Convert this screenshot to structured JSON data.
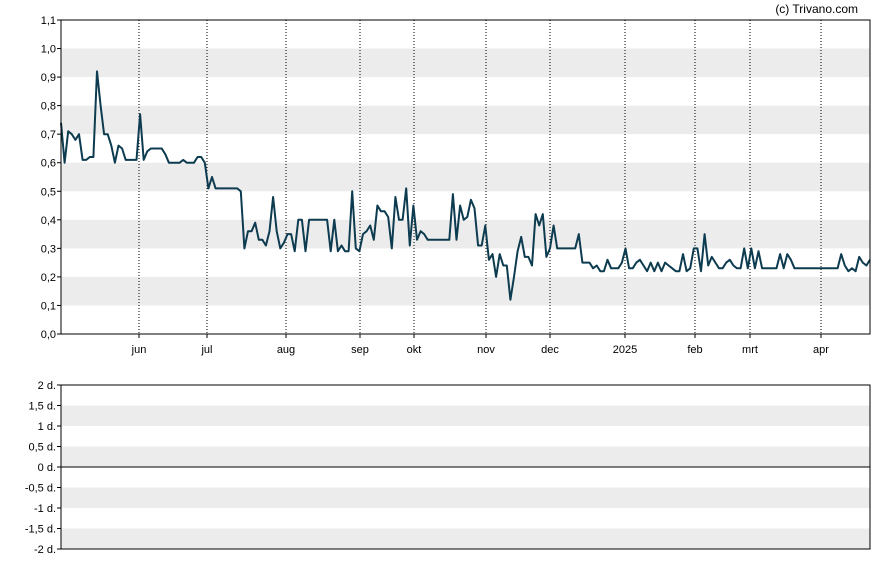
{
  "credit": "(c) Trivano.com",
  "chart_data": [
    {
      "type": "line",
      "title": "",
      "xlabel": "",
      "ylabel": "",
      "grid": true,
      "ylim": [
        0,
        1.1
      ],
      "y_ticks": [
        "0,0",
        "0,1",
        "0,2",
        "0,3",
        "0,4",
        "0,5",
        "0,6",
        "0,7",
        "0,8",
        "0,9",
        "1,0",
        "1,1"
      ],
      "x_ticks": [
        "jun",
        "jul",
        "aug",
        "sep",
        "okt",
        "nov",
        "dec",
        "2025",
        "feb",
        "mrt",
        "apr"
      ],
      "series": [
        {
          "color": "#0d3b4f",
          "values": [
            0.74,
            0.6,
            0.71,
            0.7,
            0.68,
            0.7,
            0.61,
            0.61,
            0.62,
            0.62,
            0.92,
            0.8,
            0.7,
            0.7,
            0.66,
            0.6,
            0.66,
            0.65,
            0.61,
            0.61,
            0.61,
            0.61,
            0.77,
            0.61,
            0.64,
            0.65,
            0.65,
            0.65,
            0.65,
            0.63,
            0.6,
            0.6,
            0.6,
            0.6,
            0.61,
            0.6,
            0.6,
            0.6,
            0.62,
            0.62,
            0.6,
            0.51,
            0.55,
            0.51,
            0.51,
            0.51,
            0.51,
            0.51,
            0.51,
            0.51,
            0.5,
            0.3,
            0.36,
            0.36,
            0.39,
            0.33,
            0.33,
            0.31,
            0.36,
            0.48,
            0.36,
            0.3,
            0.32,
            0.35,
            0.35,
            0.29,
            0.4,
            0.4,
            0.29,
            0.4,
            0.4,
            0.4,
            0.4,
            0.4,
            0.4,
            0.29,
            0.4,
            0.29,
            0.31,
            0.29,
            0.29,
            0.5,
            0.3,
            0.29,
            0.35,
            0.36,
            0.38,
            0.33,
            0.45,
            0.43,
            0.43,
            0.41,
            0.3,
            0.48,
            0.4,
            0.4,
            0.51,
            0.31,
            0.45,
            0.33,
            0.36,
            0.35,
            0.33,
            0.33,
            0.33,
            0.33,
            0.33,
            0.33,
            0.33,
            0.49,
            0.33,
            0.45,
            0.4,
            0.41,
            0.47,
            0.44,
            0.31,
            0.31,
            0.38,
            0.26,
            0.28,
            0.2,
            0.28,
            0.24,
            0.24,
            0.12,
            0.2,
            0.29,
            0.34,
            0.27,
            0.27,
            0.24,
            0.42,
            0.38,
            0.42,
            0.27,
            0.3,
            0.38,
            0.3,
            0.3,
            0.3,
            0.3,
            0.3,
            0.3,
            0.35,
            0.25,
            0.25,
            0.25,
            0.23,
            0.24,
            0.22,
            0.22,
            0.26,
            0.23,
            0.23,
            0.23,
            0.25,
            0.3,
            0.23,
            0.23,
            0.25,
            0.26,
            0.24,
            0.22,
            0.25,
            0.22,
            0.25,
            0.22,
            0.25,
            0.24,
            0.23,
            0.22,
            0.22,
            0.28,
            0.22,
            0.23,
            0.3,
            0.3,
            0.22,
            0.35,
            0.24,
            0.27,
            0.25,
            0.23,
            0.23,
            0.25,
            0.26,
            0.24,
            0.23,
            0.23,
            0.3,
            0.23,
            0.3,
            0.23,
            0.29,
            0.23,
            0.23,
            0.23,
            0.23,
            0.23,
            0.28,
            0.23,
            0.28,
            0.26,
            0.23,
            0.23,
            0.23,
            0.23,
            0.23,
            0.23,
            0.23,
            0.23,
            0.23,
            0.23,
            0.23,
            0.23,
            0.23,
            0.28,
            0.24,
            0.22,
            0.23,
            0.22,
            0.27,
            0.25,
            0.24,
            0.26
          ]
        }
      ]
    },
    {
      "type": "line",
      "title": "",
      "xlabel": "",
      "ylabel": "",
      "grid": true,
      "ylim": [
        -2,
        2
      ],
      "y_ticks": [
        "2 d.",
        "1,5 d.",
        "1 d.",
        "0,5 d.",
        "0 d.",
        "-0,5 d.",
        "-1 d.",
        "-1,5 d.",
        "-2 d."
      ],
      "series": []
    }
  ]
}
